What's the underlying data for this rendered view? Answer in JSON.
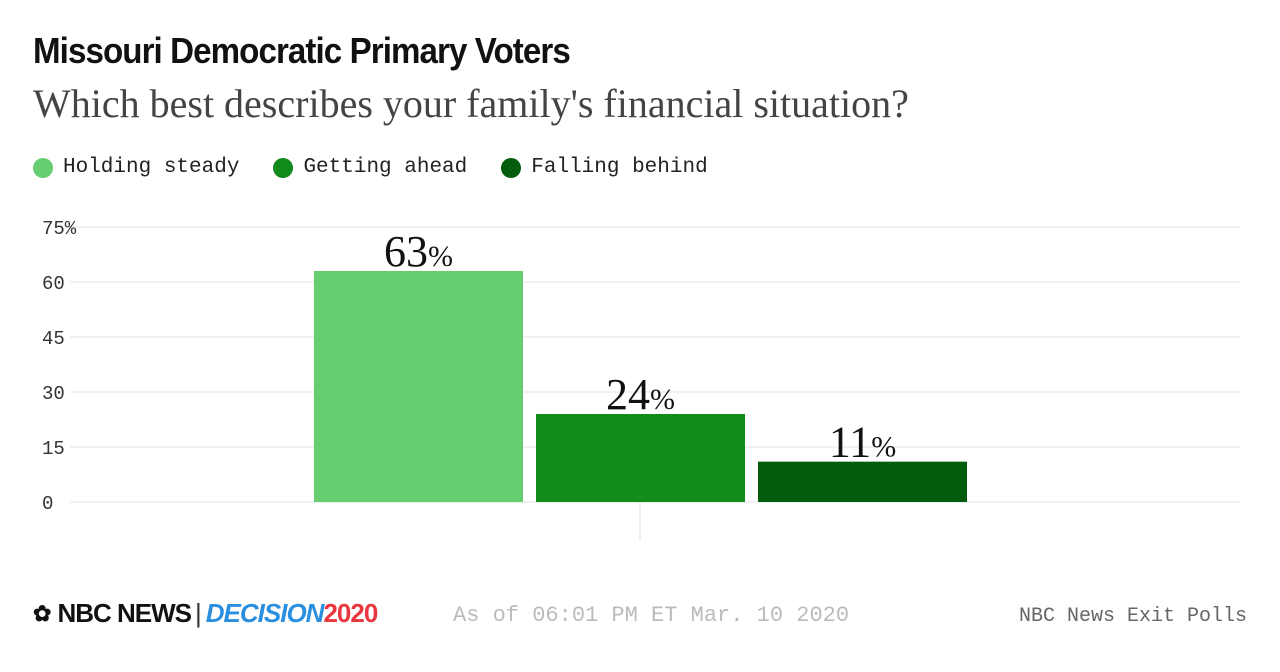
{
  "header": {
    "title": "Missouri Democratic Primary Voters",
    "subtitle": "Which best describes your family's financial situation?"
  },
  "chart_data": {
    "type": "bar",
    "categories": [
      "Holding steady",
      "Getting ahead",
      "Falling behind"
    ],
    "values": [
      63,
      24,
      11
    ],
    "labels": [
      "63",
      "24",
      "11"
    ],
    "label_suffix": "%",
    "colors": [
      "#66cd70",
      "#138a1c",
      "#035c0c"
    ],
    "yticks": [
      "75%",
      "60",
      "45",
      "30",
      "15",
      "0"
    ],
    "ytick_values": [
      75,
      60,
      45,
      30,
      15,
      0
    ],
    "ylim": [
      0,
      75
    ],
    "grid": true,
    "legend_placement": "top-left"
  },
  "footer": {
    "logo_text": "NBC NEWS",
    "decision": "DECISION",
    "year": "2020",
    "as_of": "As of 06:01 PM ET Mar. 10 2020",
    "source": "NBC News Exit Polls"
  }
}
